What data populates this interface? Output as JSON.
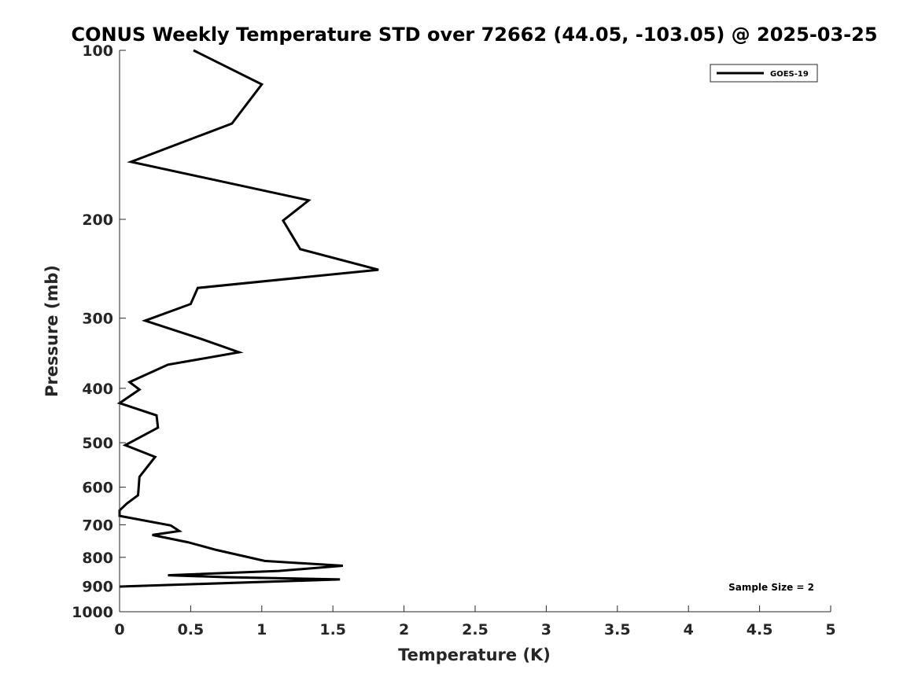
{
  "chart_data": {
    "type": "line",
    "title": "CONUS Weekly Temperature STD over 72662 (44.05, -103.05) @ 2025-03-25",
    "xlabel": "Temperature (K)",
    "ylabel": "Pressure (mb)",
    "xlim": [
      0,
      5
    ],
    "ylim": [
      1000,
      100
    ],
    "yscale": "log",
    "xticks": [
      "0",
      "0.5",
      "1",
      "1.5",
      "2",
      "2.5",
      "3",
      "3.5",
      "4",
      "4.5",
      "5"
    ],
    "yticks": [
      "100",
      "200",
      "300",
      "400",
      "500",
      "600",
      "700",
      "800",
      "900",
      "1000"
    ],
    "grid": false,
    "legend_position": "top-right",
    "annotation": "Sample Size = 2",
    "series": [
      {
        "name": "GOES-19",
        "color": "#000000",
        "points": [
          [
            0.52,
            100
          ],
          [
            1.0,
            115
          ],
          [
            0.79,
            135
          ],
          [
            0.08,
            158
          ],
          [
            1.33,
            185
          ],
          [
            1.15,
            201
          ],
          [
            1.27,
            226
          ],
          [
            1.82,
            246
          ],
          [
            0.55,
            265
          ],
          [
            0.5,
            283
          ],
          [
            0.18,
            303
          ],
          [
            0.58,
            327
          ],
          [
            0.84,
            345
          ],
          [
            0.34,
            363
          ],
          [
            0.07,
            390
          ],
          [
            0.14,
            402
          ],
          [
            0.0,
            425
          ],
          [
            0.26,
            447
          ],
          [
            0.27,
            470
          ],
          [
            0.04,
            505
          ],
          [
            0.25,
            530
          ],
          [
            0.14,
            575
          ],
          [
            0.13,
            620
          ],
          [
            0.05,
            642
          ],
          [
            0.0,
            660
          ],
          [
            0.0,
            675
          ],
          [
            0.36,
            702
          ],
          [
            0.42,
            718
          ],
          [
            0.23,
            730
          ],
          [
            0.48,
            752
          ],
          [
            0.68,
            776
          ],
          [
            1.02,
            812
          ],
          [
            1.57,
            828
          ],
          [
            1.12,
            846
          ],
          [
            0.34,
            861
          ],
          [
            0.76,
            868
          ],
          [
            1.55,
            876
          ],
          [
            0.0,
            902
          ]
        ]
      }
    ]
  }
}
